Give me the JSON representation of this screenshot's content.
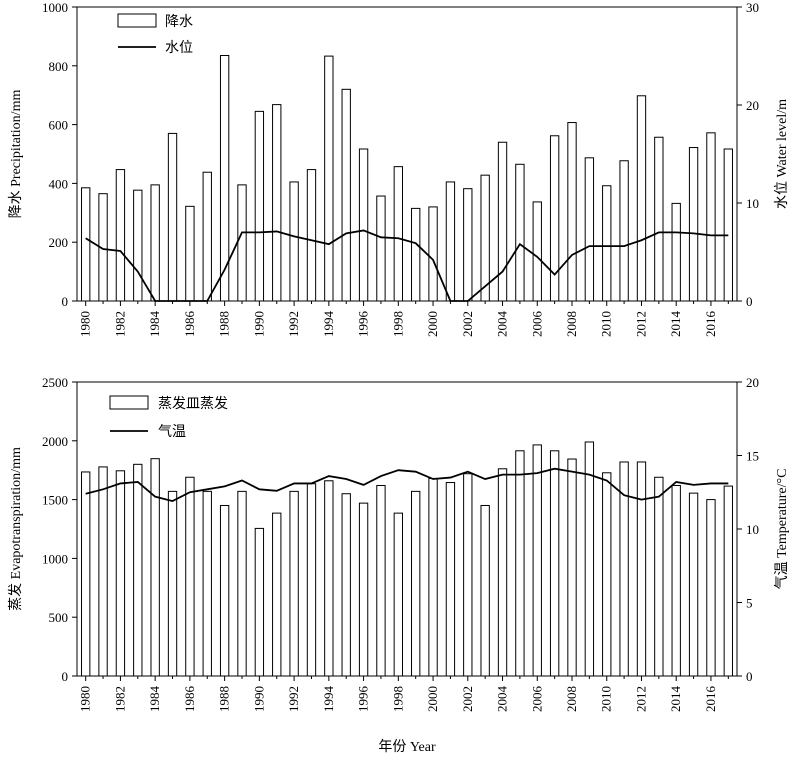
{
  "chart_data": [
    {
      "type": "bar",
      "x": [
        1980,
        1981,
        1982,
        1983,
        1984,
        1985,
        1986,
        1987,
        1988,
        1989,
        1990,
        1991,
        1992,
        1993,
        1994,
        1995,
        1996,
        1997,
        1998,
        1999,
        2000,
        2001,
        2002,
        2003,
        2004,
        2005,
        2006,
        2007,
        2008,
        2009,
        2010,
        2011,
        2012,
        2013,
        2014,
        2015,
        2016,
        2017
      ],
      "xtick_labels": [
        "1980",
        "1982",
        "1984",
        "1986",
        "1988",
        "1990",
        "1992",
        "1994",
        "1996",
        "1998",
        "2000",
        "2002",
        "2004",
        "2006",
        "2008",
        "2010",
        "2012",
        "2014",
        "2016"
      ],
      "series": [
        {
          "name": "降水",
          "kind": "bar",
          "axis": "left",
          "values": [
            385,
            365,
            447,
            377,
            395,
            570,
            322,
            438,
            835,
            395,
            645,
            668,
            405,
            447,
            833,
            720,
            517,
            357,
            457,
            315,
            320,
            405,
            382,
            428,
            540,
            465,
            337,
            562,
            607,
            487,
            392,
            477,
            698,
            557,
            332,
            522,
            572,
            517
          ]
        },
        {
          "name": "水位",
          "kind": "line",
          "axis": "right",
          "values": [
            6.4,
            5.3,
            5.1,
            3.0,
            0.0,
            0.0,
            0.0,
            0.0,
            3.2,
            7.0,
            7.0,
            7.1,
            6.6,
            6.2,
            5.8,
            6.9,
            7.2,
            6.5,
            6.4,
            5.9,
            4.2,
            0.0,
            0.0,
            1.5,
            3.0,
            5.8,
            4.5,
            2.7,
            4.7,
            5.6,
            5.6,
            5.6,
            6.2,
            7.0,
            7.0,
            6.9,
            6.7,
            6.7
          ]
        }
      ],
      "yticks_left": [
        "0",
        "200",
        "400",
        "600",
        "800",
        "1000"
      ],
      "yticks_right": [
        "0",
        "10",
        "20",
        "30"
      ],
      "ylabel": "降水 Precipitation/mm",
      "ylabel_right": "水位 Water level/m",
      "ylim": [
        0,
        1000
      ],
      "ylim_right": [
        0,
        30
      ],
      "legend_position": "top-left",
      "grid": false,
      "colors": {
        "bar_fill": "#ffffff",
        "bar_stroke": "#000000",
        "line": "#000000"
      }
    },
    {
      "type": "bar",
      "x": [
        1980,
        1981,
        1982,
        1983,
        1984,
        1985,
        1986,
        1987,
        1988,
        1989,
        1990,
        1991,
        1992,
        1993,
        1994,
        1995,
        1996,
        1997,
        1998,
        1999,
        2000,
        2001,
        2002,
        2003,
        2004,
        2005,
        2006,
        2007,
        2008,
        2009,
        2010,
        2011,
        2012,
        2013,
        2014,
        2015,
        2016,
        2017
      ],
      "xtick_labels": [
        "1980",
        "1982",
        "1984",
        "1986",
        "1988",
        "1990",
        "1992",
        "1994",
        "1996",
        "1998",
        "2000",
        "2002",
        "2004",
        "2006",
        "2008",
        "2010",
        "2012",
        "2014",
        "2016"
      ],
      "series": [
        {
          "name": "蒸发皿蒸发",
          "kind": "bar",
          "axis": "left",
          "values": [
            1735,
            1778,
            1745,
            1800,
            1848,
            1570,
            1690,
            1570,
            1450,
            1570,
            1255,
            1385,
            1570,
            1635,
            1660,
            1550,
            1470,
            1620,
            1385,
            1570,
            1680,
            1645,
            1720,
            1450,
            1762,
            1915,
            1965,
            1915,
            1845,
            1990,
            1728,
            1820,
            1820,
            1690,
            1620,
            1555,
            1500,
            1615
          ]
        },
        {
          "name": "气温",
          "kind": "line",
          "axis": "right",
          "values": [
            12.4,
            12.7,
            13.1,
            13.2,
            12.2,
            11.9,
            12.5,
            12.7,
            12.9,
            13.3,
            12.7,
            12.6,
            13.1,
            13.1,
            13.6,
            13.4,
            13.0,
            13.6,
            14.0,
            13.9,
            13.4,
            13.5,
            13.9,
            13.4,
            13.7,
            13.7,
            13.8,
            14.1,
            13.9,
            13.7,
            13.3,
            12.3,
            12.0,
            12.2,
            13.2,
            13.0,
            13.1,
            13.1
          ]
        }
      ],
      "yticks_left": [
        "0",
        "500",
        "1000",
        "1500",
        "2000",
        "2500"
      ],
      "yticks_right": [
        "0",
        "5",
        "10",
        "15",
        "20"
      ],
      "ylabel": "蒸发 Evapotranspiration/mm",
      "ylabel_right": "气温 Temperature/°C",
      "xlabel": "年份 Year",
      "ylim": [
        0,
        2500
      ],
      "ylim_right": [
        0,
        20
      ],
      "legend_position": "top-left",
      "grid": false,
      "colors": {
        "bar_fill": "#ffffff",
        "bar_stroke": "#000000",
        "line": "#000000"
      }
    }
  ]
}
